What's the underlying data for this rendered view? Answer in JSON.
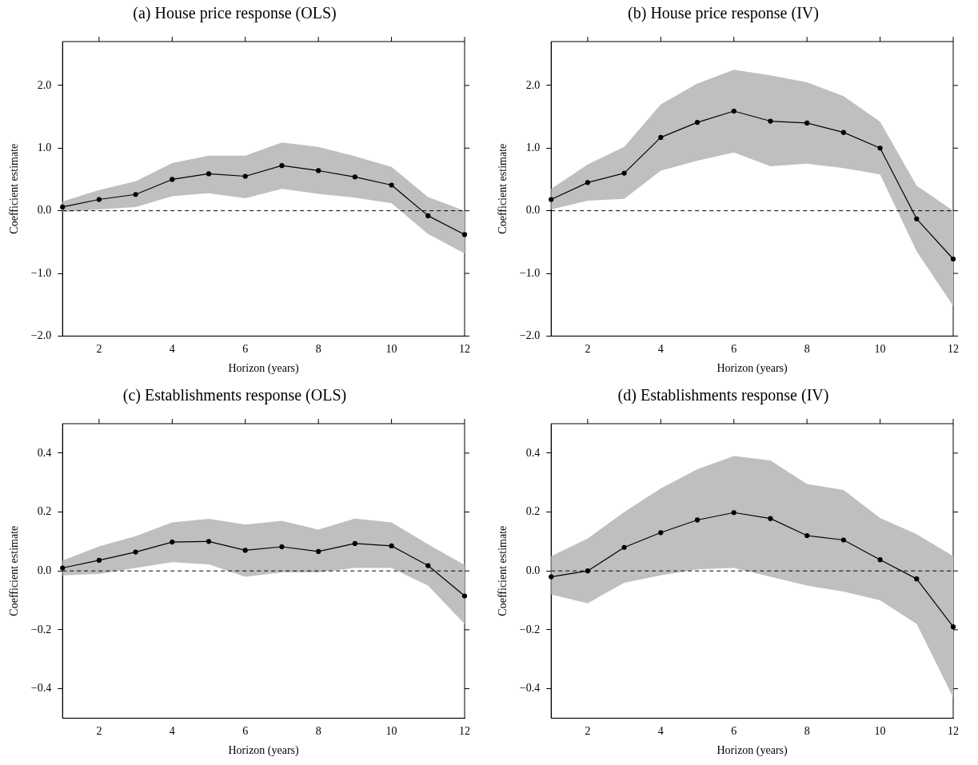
{
  "chart_data": [
    {
      "type": "line",
      "title": "(a) House price response (OLS)",
      "xlabel": "Horizon (years)",
      "ylabel": "Coefficient estimate",
      "x": [
        1,
        2,
        3,
        4,
        5,
        6,
        7,
        8,
        9,
        10,
        11,
        12
      ],
      "xlim": [
        1,
        12
      ],
      "xticks": [
        2,
        4,
        6,
        8,
        10,
        12
      ],
      "ylim": [
        -2,
        2.7
      ],
      "yticks": [
        {
          "value": -2,
          "label": "−2.0"
        },
        {
          "value": -1,
          "label": "−1.0"
        },
        {
          "value": 0,
          "label": "0.0"
        },
        {
          "value": 1,
          "label": "1.0"
        },
        {
          "value": 2,
          "label": "2.0"
        }
      ],
      "grid": false,
      "legend": false,
      "marker": "circle",
      "ref_lines": [
        {
          "axis": "y",
          "value": 0,
          "line_style": "dashed",
          "color": "#000000"
        }
      ],
      "series": [
        {
          "color": "#000000",
          "values": [
            0.06,
            0.18,
            0.26,
            0.5,
            0.59,
            0.55,
            0.72,
            0.64,
            0.54,
            0.41,
            -0.08,
            -0.38
          ],
          "lower": [
            -0.02,
            0.02,
            0.06,
            0.23,
            0.28,
            0.2,
            0.35,
            0.27,
            0.21,
            0.12,
            -0.37,
            -0.68
          ],
          "upper": [
            0.15,
            0.33,
            0.47,
            0.76,
            0.88,
            0.88,
            1.09,
            1.02,
            0.87,
            0.7,
            0.22,
            0.0
          ]
        }
      ]
    },
    {
      "type": "line",
      "title": "(b) House price response (IV)",
      "xlabel": "Horizon (years)",
      "ylabel": "Coefficient estimate",
      "x": [
        1,
        2,
        3,
        4,
        5,
        6,
        7,
        8,
        9,
        10,
        11,
        12
      ],
      "xlim": [
        1,
        12
      ],
      "xticks": [
        2,
        4,
        6,
        8,
        10,
        12
      ],
      "ylim": [
        -2,
        2.7
      ],
      "yticks": [
        {
          "value": -2,
          "label": "−2.0"
        },
        {
          "value": -1,
          "label": "−1.0"
        },
        {
          "value": 0,
          "label": "0.0"
        },
        {
          "value": 1,
          "label": "1.0"
        },
        {
          "value": 2,
          "label": "2.0"
        }
      ],
      "grid": false,
      "legend": false,
      "marker": "circle",
      "ref_lines": [
        {
          "axis": "y",
          "value": 0,
          "line_style": "dashed",
          "color": "#000000"
        }
      ],
      "series": [
        {
          "color": "#000000",
          "values": [
            0.18,
            0.45,
            0.6,
            1.17,
            1.41,
            1.59,
            1.43,
            1.4,
            1.25,
            1.0,
            -0.13,
            -0.77
          ],
          "lower": [
            0.02,
            0.16,
            0.19,
            0.64,
            0.8,
            0.93,
            0.71,
            0.75,
            0.68,
            0.58,
            -0.65,
            -1.52
          ],
          "upper": [
            0.35,
            0.74,
            1.02,
            1.7,
            2.03,
            2.25,
            2.16,
            2.05,
            1.83,
            1.42,
            0.4,
            0.0
          ]
        }
      ]
    },
    {
      "type": "line",
      "title": "(c) Establishments response (OLS)",
      "xlabel": "Horizon (years)",
      "ylabel": "Coefficient estimate",
      "x": [
        1,
        2,
        3,
        4,
        5,
        6,
        7,
        8,
        9,
        10,
        11,
        12
      ],
      "xlim": [
        1,
        12
      ],
      "xticks": [
        2,
        4,
        6,
        8,
        10,
        12
      ],
      "ylim": [
        -0.5,
        0.5
      ],
      "yticks": [
        {
          "value": -0.4,
          "label": "−0.4"
        },
        {
          "value": -0.2,
          "label": "−0.2"
        },
        {
          "value": 0,
          "label": "0.0"
        },
        {
          "value": 0.2,
          "label": "0.2"
        },
        {
          "value": 0.4,
          "label": "0.4"
        }
      ],
      "grid": false,
      "legend": false,
      "marker": "circle",
      "ref_lines": [
        {
          "axis": "y",
          "value": 0,
          "line_style": "dashed",
          "color": "#000000"
        }
      ],
      "series": [
        {
          "color": "#000000",
          "values": [
            0.01,
            0.036,
            0.064,
            0.098,
            0.1,
            0.07,
            0.082,
            0.066,
            0.093,
            0.085,
            0.018,
            -0.085
          ],
          "lower": [
            -0.015,
            -0.01,
            0.01,
            0.03,
            0.022,
            -0.02,
            -0.005,
            -0.005,
            0.01,
            0.01,
            -0.05,
            -0.18
          ],
          "upper": [
            0.035,
            0.083,
            0.118,
            0.165,
            0.177,
            0.157,
            0.17,
            0.14,
            0.178,
            0.165,
            0.09,
            0.02
          ]
        }
      ]
    },
    {
      "type": "line",
      "title": "(d) Establishments response (IV)",
      "xlabel": "Horizon (years)",
      "ylabel": "Coefficient estimate",
      "x": [
        1,
        2,
        3,
        4,
        5,
        6,
        7,
        8,
        9,
        10,
        11,
        12
      ],
      "xlim": [
        1,
        12
      ],
      "xticks": [
        2,
        4,
        6,
        8,
        10,
        12
      ],
      "ylim": [
        -0.5,
        0.5
      ],
      "yticks": [
        {
          "value": -0.4,
          "label": "−0.4"
        },
        {
          "value": -0.2,
          "label": "−0.2"
        },
        {
          "value": 0,
          "label": "0.0"
        },
        {
          "value": 0.2,
          "label": "0.2"
        },
        {
          "value": 0.4,
          "label": "0.4"
        }
      ],
      "grid": false,
      "legend": false,
      "marker": "circle",
      "ref_lines": [
        {
          "axis": "y",
          "value": 0,
          "line_style": "dashed",
          "color": "#000000"
        }
      ],
      "series": [
        {
          "color": "#000000",
          "values": [
            -0.02,
            0.0,
            0.08,
            0.13,
            0.173,
            0.198,
            0.178,
            0.12,
            0.105,
            0.038,
            -0.027,
            -0.19
          ],
          "lower": [
            -0.08,
            -0.11,
            -0.04,
            -0.015,
            0.005,
            0.01,
            -0.02,
            -0.05,
            -0.07,
            -0.1,
            -0.18,
            -0.43
          ],
          "upper": [
            0.05,
            0.11,
            0.2,
            0.28,
            0.345,
            0.39,
            0.375,
            0.295,
            0.275,
            0.18,
            0.125,
            0.05
          ]
        }
      ]
    }
  ]
}
